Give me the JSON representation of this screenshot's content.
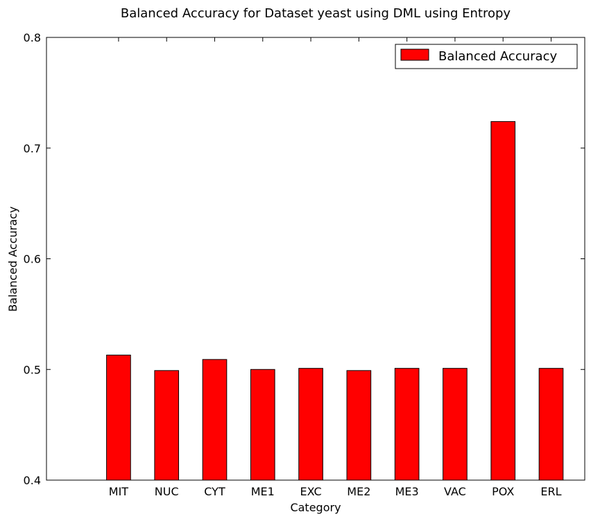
{
  "chart_data": {
    "type": "bar",
    "title": "Balanced Accuracy for Dataset yeast using DML using Entropy",
    "xlabel": "Category",
    "ylabel": "Balanced Accuracy",
    "categories": [
      "MIT",
      "NUC",
      "CYT",
      "ME1",
      "EXC",
      "ME2",
      "ME3",
      "VAC",
      "POX",
      "ERL"
    ],
    "series": [
      {
        "name": "Balanced Accuracy",
        "values": [
          0.513,
          0.499,
          0.509,
          0.5,
          0.501,
          0.499,
          0.501,
          0.501,
          0.724,
          0.501
        ],
        "color": "#ff0000"
      }
    ],
    "ylim": [
      0.4,
      0.8
    ],
    "xlim": [
      -1.5,
      9.7
    ],
    "yticks": [
      0.4,
      0.5,
      0.6,
      0.7,
      0.8
    ],
    "ytick_labels": [
      "0.4",
      "0.5",
      "0.6",
      "0.7",
      "0.8"
    ],
    "grid": false,
    "legend_position": "top-right"
  }
}
